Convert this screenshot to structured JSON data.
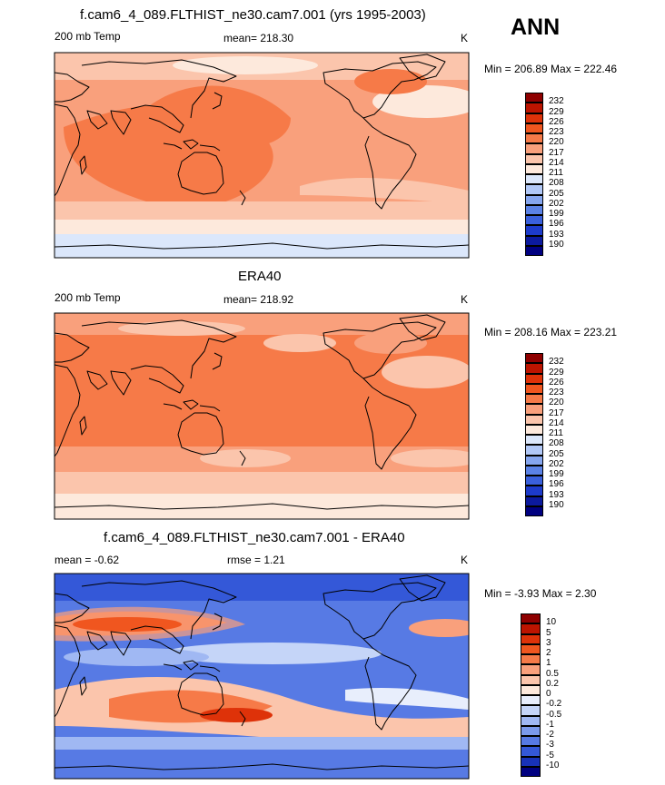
{
  "season": "ANN",
  "chart_data": [
    {
      "type": "heatmap",
      "title": "f.cam6_4_089.FLTHIST_ne30.cam7.001 (yrs 1995-2003)",
      "variable": "200 mb Temp",
      "mean_text": "mean= 218.30",
      "units": "K",
      "minmax_text": "Min = 206.89 Max = 222.46",
      "min": 206.89,
      "max": 222.46,
      "levels": [
        "232",
        "229",
        "226",
        "223",
        "220",
        "217",
        "214",
        "211",
        "208",
        "205",
        "202",
        "199",
        "196",
        "193",
        "190"
      ],
      "colors": [
        "#8e0000",
        "#bc1400",
        "#de3209",
        "#f0561f",
        "#f67a48",
        "#f9a07c",
        "#fbc5ac",
        "#fde9dc",
        "#dbe7fb",
        "#b1c8f7",
        "#86a6ef",
        "#5b82e6",
        "#3a60dc",
        "#1d3bcb",
        "#0c1a9e",
        "#000080"
      ]
    },
    {
      "type": "heatmap",
      "title": "ERA40",
      "variable": "200 mb Temp",
      "mean_text": "mean= 218.92",
      "units": "K",
      "minmax_text": "Min = 208.16 Max = 223.21",
      "min": 208.16,
      "max": 223.21,
      "levels": [
        "232",
        "229",
        "226",
        "223",
        "220",
        "217",
        "214",
        "211",
        "208",
        "205",
        "202",
        "199",
        "196",
        "193",
        "190"
      ],
      "colors": [
        "#8e0000",
        "#bc1400",
        "#de3209",
        "#f0561f",
        "#f67a48",
        "#f9a07c",
        "#fbc5ac",
        "#fde9dc",
        "#dbe7fb",
        "#b1c8f7",
        "#86a6ef",
        "#5b82e6",
        "#3a60dc",
        "#1d3bcb",
        "#0c1a9e",
        "#000080"
      ]
    },
    {
      "type": "heatmap",
      "title": "f.cam6_4_089.FLTHIST_ne30.cam7.001 - ERA40",
      "mean_text": "mean =  -0.62",
      "rmse_text": "rmse =   1.21",
      "units": "K",
      "minmax_text": "Min =  -3.93 Max =   2.30",
      "min": -3.93,
      "max": 2.3,
      "levels": [
        "10",
        "5",
        "3",
        "2",
        "1",
        "0.5",
        "0.2",
        "0",
        "-0.2",
        "-0.5",
        "-1",
        "-2",
        "-3",
        "-5",
        "-10"
      ],
      "colors": [
        "#8e0000",
        "#bc1400",
        "#de3209",
        "#f0561f",
        "#f67a48",
        "#f9a07c",
        "#fbc5ac",
        "#fde9dc",
        "#e8eefc",
        "#c5d5f8",
        "#a0b8f3",
        "#7b9aec",
        "#577ae4",
        "#3458d8",
        "#1832b8",
        "#000080"
      ]
    }
  ]
}
